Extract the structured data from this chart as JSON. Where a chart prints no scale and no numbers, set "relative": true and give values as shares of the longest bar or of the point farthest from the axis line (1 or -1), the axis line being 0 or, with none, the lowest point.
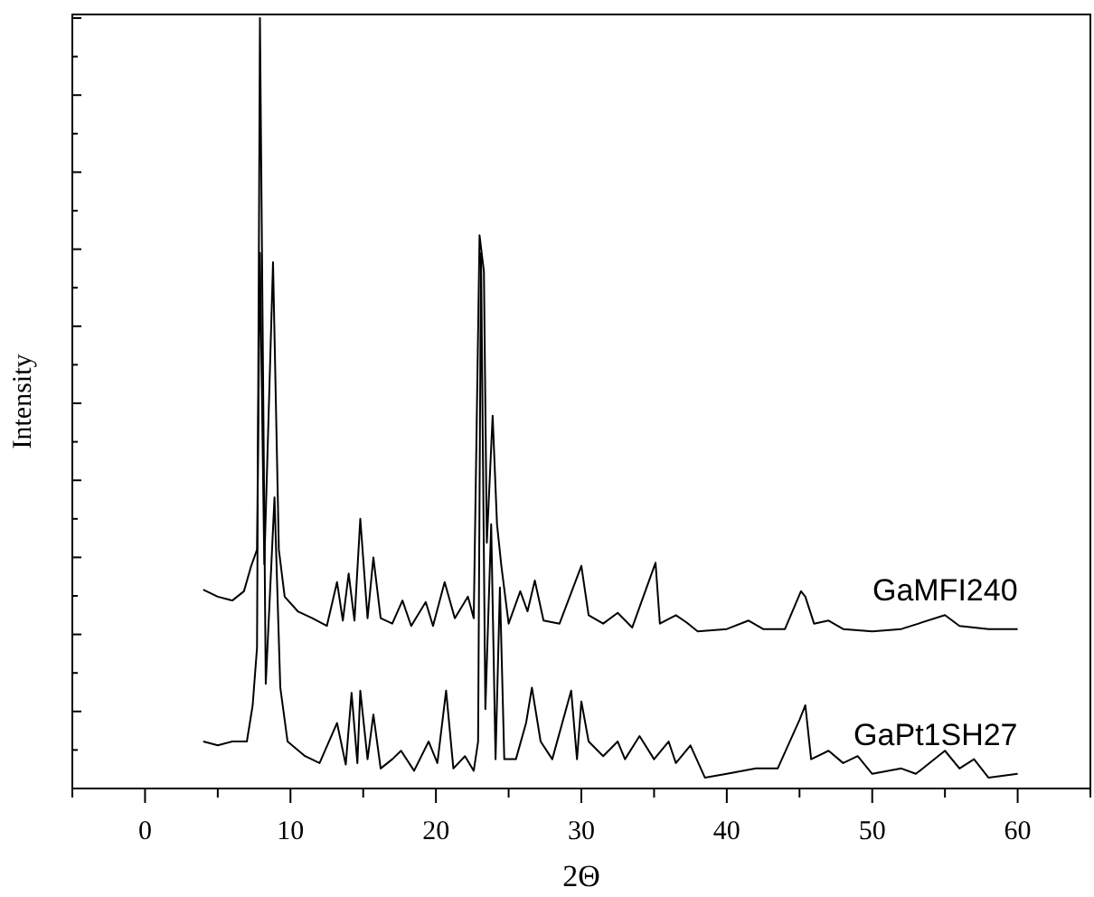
{
  "chart_data": {
    "type": "line",
    "xlabel": "2Θ",
    "ylabel": "Intensity",
    "relative": true,
    "tick_labels": "x",
    "xlim": [
      -5,
      65
    ],
    "xticks": [
      {
        "value": -5,
        "label": null
      },
      0,
      {
        "value": 5,
        "label": null
      },
      10,
      {
        "value": 15,
        "label": null
      },
      20,
      {
        "value": 25,
        "label": null
      },
      30,
      {
        "value": 35,
        "label": null
      },
      40,
      {
        "value": 45,
        "label": null
      },
      50,
      {
        "value": 55,
        "label": null
      },
      60,
      {
        "value": 65,
        "label": null
      }
    ],
    "grid": false,
    "marker": "none",
    "line_style": "solid",
    "series": [
      {
        "name": "GaMFI240",
        "color": "#000000",
        "x": [
          4,
          5,
          6,
          6.8,
          7.3,
          7.7,
          7.9,
          8.2,
          8.8,
          9.2,
          9.6,
          10.5,
          11.5,
          12.5,
          13.2,
          13.6,
          14,
          14.4,
          14.8,
          15.3,
          15.7,
          16.2,
          17,
          17.7,
          18.3,
          19.3,
          19.8,
          20.6,
          21.3,
          22.2,
          22.6,
          23,
          23.3,
          23.5,
          23.9,
          24.2,
          24.5,
          25,
          25.8,
          26.3,
          26.8,
          27.4,
          28.5,
          29.3,
          30,
          30.5,
          31.5,
          32.5,
          33.5,
          35.1,
          35.4,
          36.5,
          37.2,
          38,
          40,
          41.5,
          42.5,
          44,
          45.1,
          45.4,
          46,
          47,
          48,
          50,
          52,
          55,
          56,
          58,
          60
        ],
        "values": [
          0.258,
          0.249,
          0.244,
          0.256,
          0.289,
          0.31,
          0.695,
          0.291,
          0.683,
          0.31,
          0.249,
          0.23,
          0.221,
          0.211,
          0.268,
          0.218,
          0.279,
          0.218,
          0.35,
          0.221,
          0.3,
          0.221,
          0.214,
          0.244,
          0.211,
          0.242,
          0.211,
          0.268,
          0.221,
          0.249,
          0.221,
          0.718,
          0.671,
          0.319,
          0.484,
          0.343,
          0.289,
          0.214,
          0.256,
          0.23,
          0.27,
          0.218,
          0.214,
          0.254,
          0.289,
          0.225,
          0.214,
          0.228,
          0.209,
          0.293,
          0.214,
          0.225,
          0.216,
          0.204,
          0.207,
          0.218,
          0.207,
          0.207,
          0.256,
          0.249,
          0.214,
          0.218,
          0.207,
          0.204,
          0.207,
          0.225,
          0.211,
          0.207,
          0.207
        ]
      },
      {
        "name": "GaPt1SH27",
        "color": "#000000",
        "x": [
          4,
          5,
          6,
          7,
          7.4,
          7.7,
          7.9,
          8.3,
          8.9,
          9.3,
          9.8,
          11,
          12,
          13.2,
          13.8,
          14.2,
          14.6,
          14.8,
          15.3,
          15.7,
          16.2,
          17,
          17.6,
          18.5,
          19.5,
          20.1,
          20.7,
          21.2,
          22,
          22.6,
          22.9,
          23.1,
          23.4,
          23.8,
          24.1,
          24.4,
          24.7,
          25.5,
          26.2,
          26.6,
          27.2,
          28,
          29.3,
          29.7,
          30,
          30.5,
          31.5,
          32.5,
          33,
          34,
          35,
          36,
          36.5,
          37.5,
          38.5,
          40,
          42,
          43.5,
          45,
          45.4,
          45.8,
          47,
          48,
          49,
          50,
          52,
          53,
          55,
          56,
          57,
          58,
          60
        ],
        "values": [
          0.061,
          0.056,
          0.061,
          0.061,
          0.108,
          0.183,
          1,
          0.136,
          0.378,
          0.131,
          0.061,
          0.042,
          0.033,
          0.085,
          0.031,
          0.124,
          0.033,
          0.127,
          0.038,
          0.096,
          0.026,
          0.038,
          0.049,
          0.023,
          0.061,
          0.033,
          0.127,
          0.026,
          0.042,
          0.023,
          0.061,
          0.695,
          0.103,
          0.343,
          0.038,
          0.261,
          0.038,
          0.038,
          0.085,
          0.131,
          0.061,
          0.038,
          0.127,
          0.038,
          0.113,
          0.061,
          0.042,
          0.061,
          0.038,
          0.068,
          0.038,
          0.061,
          0.033,
          0.056,
          0.014,
          0.019,
          0.026,
          0.026,
          0.089,
          0.108,
          0.038,
          0.049,
          0.033,
          0.042,
          0.019,
          0.026,
          0.019,
          0.049,
          0.026,
          0.038,
          0.014,
          0.019
        ]
      }
    ]
  }
}
